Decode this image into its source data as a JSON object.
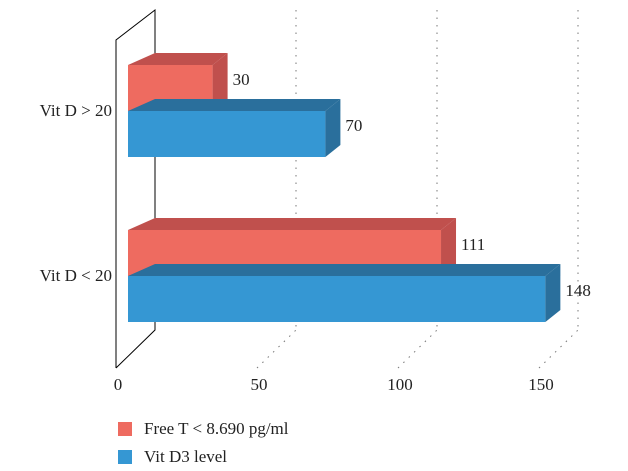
{
  "chart_data": {
    "type": "bar",
    "orientation": "horizontal",
    "style": "3d",
    "categories": [
      "Vit D > 20",
      "Vit D < 20"
    ],
    "series": [
      {
        "name": "Free T < 8.690 pg/ml",
        "values": [
          30,
          111
        ],
        "color": "#ee6b60",
        "side_color": "#c0504d"
      },
      {
        "name": "Vit D3 level",
        "values": [
          70,
          148
        ],
        "color": "#3597d3",
        "side_color": "#2a6f9c"
      }
    ],
    "xlim": [
      0,
      150
    ],
    "xticks": [
      "0",
      "50",
      "100",
      "150"
    ],
    "grid": true,
    "legend_position": "bottom-left"
  }
}
